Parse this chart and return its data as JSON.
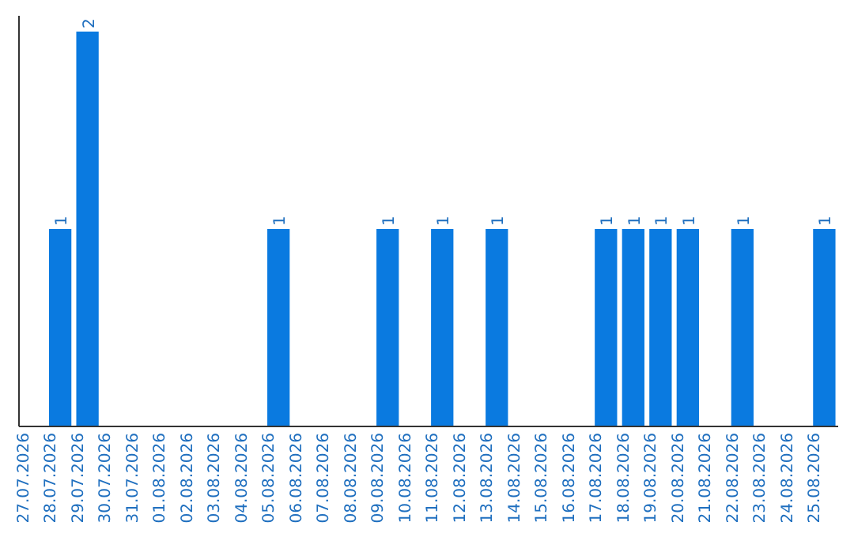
{
  "chart_data": {
    "type": "bar",
    "categories": [
      "27.07.2026",
      "28.07.2026",
      "29.07.2026",
      "30.07.2026",
      "31.07.2026",
      "01.08.2026",
      "02.08.2026",
      "03.08.2026",
      "04.08.2026",
      "05.08.2026",
      "06.08.2026",
      "07.08.2026",
      "08.08.2026",
      "09.08.2026",
      "10.08.2026",
      "11.08.2026",
      "12.08.2026",
      "13.08.2026",
      "14.08.2026",
      "15.08.2026",
      "16.08.2026",
      "17.08.2026",
      "18.08.2026",
      "19.08.2026",
      "20.08.2026",
      "21.08.2026",
      "22.08.2026",
      "23.08.2026",
      "24.08.2026",
      "25.08.2026"
    ],
    "values": [
      0,
      1,
      2,
      0,
      0,
      0,
      0,
      0,
      0,
      1,
      0,
      0,
      0,
      1,
      0,
      1,
      0,
      1,
      0,
      0,
      0,
      1,
      1,
      1,
      1,
      0,
      1,
      0,
      0,
      1
    ],
    "value_labels": [
      null,
      "1",
      "2",
      null,
      null,
      null,
      null,
      null,
      null,
      "1",
      null,
      null,
      null,
      "1",
      null,
      "1",
      null,
      "1",
      null,
      null,
      null,
      "1",
      "1",
      "1",
      "1",
      null,
      "1",
      null,
      null,
      "1"
    ],
    "color": "#0a7ae0",
    "ylim": [
      0,
      2.08
    ],
    "tick_labels": "x"
  }
}
